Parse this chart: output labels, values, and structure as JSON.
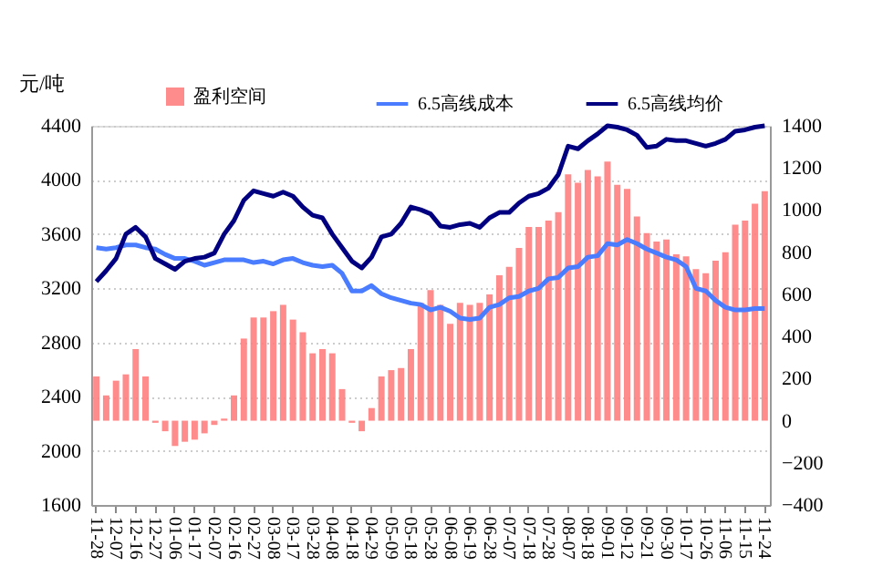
{
  "chart_data": {
    "type": "bar",
    "ylabel": "元/吨",
    "legend": "top",
    "grid": "y",
    "categories": [
      "11-28",
      null,
      "12-07",
      null,
      "12-16",
      null,
      "12-27",
      null,
      "01-06",
      null,
      "01-17",
      null,
      "02-07",
      null,
      "02-16",
      null,
      "02-27",
      null,
      "03-08",
      null,
      "03-17",
      null,
      "03-28",
      null,
      "04-08",
      null,
      "04-18",
      null,
      "04-29",
      null,
      "05-09",
      null,
      "05-18",
      null,
      "05-28",
      null,
      "06-08",
      null,
      "06-19",
      null,
      "06-28",
      null,
      "07-07",
      null,
      "07-18",
      null,
      "07-28",
      null,
      "08-07",
      null,
      "08-18",
      null,
      "09-01",
      null,
      "09-12",
      null,
      "09-21",
      null,
      "09-30",
      null,
      "10-17",
      null,
      "10-26",
      null,
      "11-06",
      null,
      "11-15",
      null,
      "11-24"
    ],
    "ylim": [
      1600,
      4400
    ],
    "yticks": [
      1600,
      2000,
      2400,
      2800,
      3200,
      3600,
      4000,
      4400
    ],
    "y2lim": [
      -400,
      1400
    ],
    "y2ticks": [
      -400,
      -200,
      0,
      200,
      400,
      600,
      800,
      1000,
      1200,
      1400
    ],
    "series": [
      {
        "name": "盈利空间",
        "axis": "y2",
        "color": "#ff8080",
        "values": [
          210,
          120,
          190,
          220,
          340,
          210,
          -10,
          -50,
          -120,
          -100,
          -90,
          -60,
          -20,
          10,
          120,
          390,
          490,
          490,
          520,
          550,
          480,
          420,
          320,
          340,
          320,
          150,
          -10,
          -50,
          60,
          210,
          240,
          250,
          340,
          560,
          620,
          550,
          460,
          560,
          550,
          560,
          600,
          690,
          730,
          820,
          920,
          920,
          950,
          990,
          1170,
          1130,
          1190,
          1160,
          1230,
          1120,
          1100,
          970,
          890,
          850,
          860,
          790,
          780,
          720,
          700,
          760,
          800,
          930,
          950,
          1030,
          1090
        ]
      },
      {
        "name": "6.5高线成本",
        "type": "line",
        "color": "#4a7cff",
        "values": [
          3500,
          3490,
          3500,
          3520,
          3520,
          3500,
          3490,
          3450,
          3420,
          3420,
          3400,
          3370,
          3390,
          3410,
          3410,
          3410,
          3390,
          3400,
          3380,
          3410,
          3420,
          3390,
          3370,
          3360,
          3370,
          3310,
          3180,
          3180,
          3220,
          3160,
          3130,
          3110,
          3090,
          3080,
          3040,
          3060,
          3030,
          2980,
          2970,
          2980,
          3060,
          3080,
          3130,
          3140,
          3180,
          3200,
          3270,
          3280,
          3350,
          3360,
          3430,
          3440,
          3530,
          3520,
          3560,
          3530,
          3490,
          3460,
          3430,
          3410,
          3360,
          3200,
          3180,
          3110,
          3060,
          3040,
          3040,
          3050,
          3050
        ]
      },
      {
        "name": "6.5高线均价",
        "type": "line",
        "color": "#000080",
        "values": [
          3250,
          3330,
          3420,
          3600,
          3650,
          3580,
          3420,
          3380,
          3340,
          3400,
          3420,
          3430,
          3460,
          3600,
          3700,
          3850,
          3920,
          3900,
          3880,
          3910,
          3880,
          3800,
          3740,
          3720,
          3600,
          3500,
          3400,
          3350,
          3430,
          3580,
          3600,
          3680,
          3800,
          3780,
          3750,
          3660,
          3650,
          3670,
          3680,
          3650,
          3720,
          3760,
          3760,
          3830,
          3880,
          3900,
          3940,
          4040,
          4250,
          4230,
          4290,
          4340,
          4400,
          4390,
          4370,
          4330,
          4240,
          4250,
          4300,
          4290,
          4290,
          4270,
          4250,
          4270,
          4300,
          4360,
          4370,
          4390,
          4400
        ]
      }
    ]
  }
}
